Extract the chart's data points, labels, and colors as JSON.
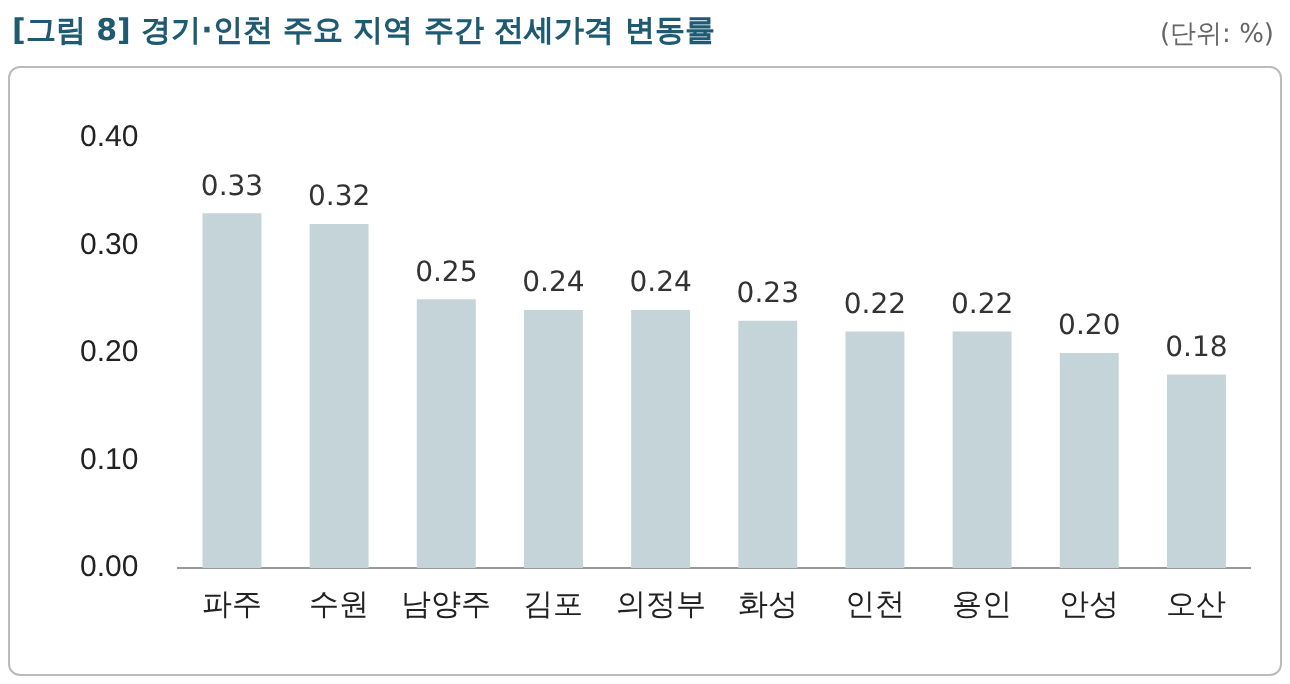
{
  "chart_data": {
    "type": "bar",
    "title": "[그림 8] 경기·인천 주요 지역 주간 전세가격 변동률",
    "annotations": [
      "(단위: %)"
    ],
    "categories": [
      "파주",
      "수원",
      "남양주",
      "김포",
      "의정부",
      "화성",
      "인천",
      "용인",
      "안성",
      "오산"
    ],
    "values": [
      0.33,
      0.32,
      0.25,
      0.24,
      0.24,
      0.23,
      0.22,
      0.22,
      0.2,
      0.18
    ],
    "color": "#c4d4d9",
    "ylim": [
      0,
      0.4
    ],
    "yticks": [
      {
        "value": 0,
        "label": "0.00"
      },
      {
        "value": 0.1,
        "label": "0.10"
      },
      {
        "value": 0.2,
        "label": "0.20"
      },
      {
        "value": 0.3,
        "label": "0.30"
      },
      {
        "value": 0.4,
        "label": "0.40"
      }
    ],
    "value_labels": [
      "0.33",
      "0.32",
      "0.25",
      "0.24",
      "0.24",
      "0.23",
      "0.22",
      "0.22",
      "0.20",
      "0.18"
    ],
    "grid": false,
    "legend": false
  }
}
